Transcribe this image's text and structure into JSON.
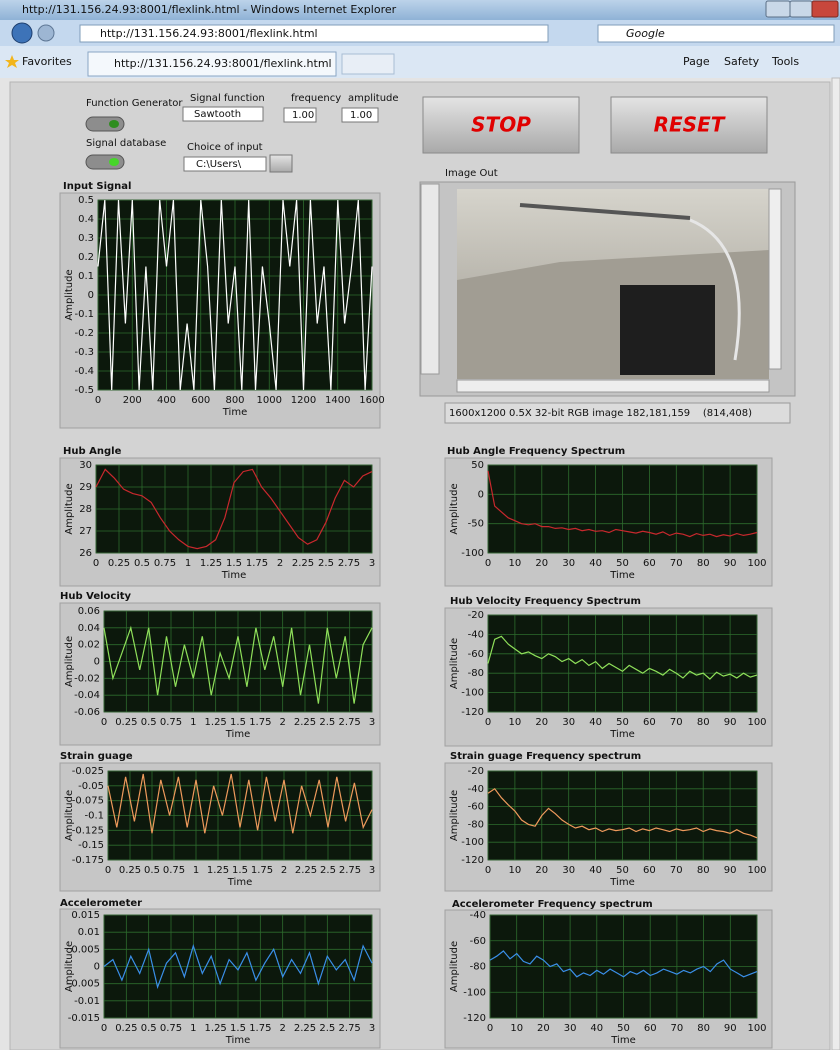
{
  "browser": {
    "window_title": "http://131.156.24.93:8001/flexlink.html - Windows Internet Explorer",
    "address": "http://131.156.24.93:8001/flexlink.html",
    "search": "Google",
    "favorites": "Favorites",
    "tab": "http://131.156.24.93:8001/flexlink.html",
    "menu": [
      "Page",
      "Safety",
      "Tools"
    ]
  },
  "controls": {
    "function_generator": "Function Generator",
    "signal_database": "Signal database",
    "signal_function_label": "Signal function",
    "signal_function": "Sawtooth",
    "frequency_label": "frequency",
    "frequency": "1.00",
    "amplitude_label": "amplitude",
    "amplitude": "1.00",
    "choice_label": "Choice of input",
    "choice": "C:\\Users\\",
    "stop": "STOP",
    "reset": "RESET"
  },
  "image": {
    "title": "Image Out",
    "status": "1600x1200 0.5X 32-bit RGB image 182,181,159    (814,408)"
  },
  "chart_data": [
    {
      "type": "line",
      "title": "Input Signal",
      "x_label": "Time",
      "y_label": "Amplitude",
      "xlim": [
        0,
        1600
      ],
      "xticks": [
        0,
        200,
        400,
        600,
        800,
        1000,
        1200,
        1400,
        1600
      ],
      "ylim": [
        -0.5,
        0.5
      ],
      "yticks": [
        -0.5,
        -0.4,
        -0.3,
        -0.2,
        -0.1,
        0,
        0.1,
        0.2,
        0.3,
        0.4,
        0.5
      ],
      "grid": true,
      "x": [
        0,
        40,
        80,
        120,
        160,
        200,
        240,
        280,
        320,
        360,
        400,
        440,
        480,
        520,
        560,
        600,
        640,
        680,
        720,
        760,
        800,
        840,
        880,
        920,
        960,
        1000,
        1040,
        1080,
        1120,
        1160,
        1200,
        1240,
        1280,
        1320,
        1360,
        1400,
        1440,
        1480,
        1520,
        1560,
        1600
      ],
      "series": [
        {
          "color": "#ffffff",
          "values": [
            0.15,
            0.5,
            -0.5,
            0.5,
            -0.15,
            0.5,
            -0.5,
            0.15,
            -0.5,
            0.5,
            0.15,
            0.5,
            -0.5,
            -0.15,
            -0.5,
            0.5,
            0.15,
            -0.5,
            0.5,
            -0.15,
            0.15,
            -0.5,
            0.5,
            -0.5,
            0.15,
            -0.15,
            -0.5,
            0.5,
            0.15,
            0.5,
            -0.5,
            0.5,
            -0.15,
            0.15,
            -0.5,
            0.5,
            -0.15,
            0.15,
            0.5,
            -0.5,
            0.15
          ]
        }
      ]
    },
    {
      "type": "line",
      "title": "Hub Angle",
      "x_label": "Time",
      "y_label": "Amplitude",
      "xlim": [
        0,
        3
      ],
      "xticks": [
        0,
        0.25,
        0.5,
        0.75,
        1,
        1.25,
        1.5,
        1.75,
        2,
        2.25,
        2.5,
        2.75,
        3
      ],
      "ylim": [
        26,
        30
      ],
      "yticks": [
        26,
        27,
        28,
        29,
        30
      ],
      "grid": true,
      "x": [
        0,
        0.1,
        0.2,
        0.3,
        0.4,
        0.5,
        0.6,
        0.7,
        0.8,
        0.9,
        1,
        1.1,
        1.2,
        1.3,
        1.4,
        1.5,
        1.6,
        1.7,
        1.8,
        1.9,
        2,
        2.1,
        2.2,
        2.3,
        2.4,
        2.5,
        2.6,
        2.7,
        2.8,
        2.9,
        3
      ],
      "series": [
        {
          "color": "#c8282d",
          "values": [
            29.0,
            29.8,
            29.4,
            28.9,
            28.7,
            28.6,
            28.3,
            27.6,
            27.0,
            26.6,
            26.3,
            26.2,
            26.3,
            26.6,
            27.6,
            29.2,
            29.7,
            29.8,
            29.0,
            28.5,
            27.9,
            27.3,
            26.7,
            26.4,
            26.6,
            27.4,
            28.5,
            29.3,
            29.0,
            29.5,
            29.7
          ]
        }
      ]
    },
    {
      "type": "line",
      "title": "Hub Angle Frequency Spectrum",
      "x_label": "Time",
      "y_label": "Amplitude",
      "xlim": [
        0,
        100
      ],
      "xticks": [
        0,
        10,
        20,
        30,
        40,
        50,
        60,
        70,
        80,
        90,
        100
      ],
      "ylim": [
        -100,
        50
      ],
      "yticks": [
        -100,
        -50,
        0,
        50
      ],
      "grid": true,
      "x": [
        0,
        2.5,
        5,
        7.5,
        10,
        12.5,
        15,
        17.5,
        20,
        22.5,
        25,
        27.5,
        30,
        32.5,
        35,
        37.5,
        40,
        42.5,
        45,
        47.5,
        50,
        52.5,
        55,
        57.5,
        60,
        62.5,
        65,
        67.5,
        70,
        72.5,
        75,
        77.5,
        80,
        82.5,
        85,
        87.5,
        90,
        92.5,
        95,
        97.5,
        100
      ],
      "series": [
        {
          "color": "#c8282d",
          "values": [
            40,
            -20,
            -30,
            -40,
            -45,
            -50,
            -52,
            -50,
            -55,
            -55,
            -58,
            -57,
            -60,
            -58,
            -62,
            -60,
            -63,
            -62,
            -65,
            -60,
            -62,
            -64,
            -66,
            -63,
            -65,
            -68,
            -64,
            -70,
            -66,
            -68,
            -72,
            -67,
            -70,
            -68,
            -72,
            -69,
            -71,
            -67,
            -70,
            -68,
            -65
          ]
        }
      ]
    },
    {
      "type": "line",
      "title": "Hub Velocity",
      "x_label": "Time",
      "y_label": "Amplitude",
      "xlim": [
        0,
        3
      ],
      "xticks": [
        0,
        0.25,
        0.5,
        0.75,
        1,
        1.25,
        1.5,
        1.75,
        2,
        2.25,
        2.5,
        2.75,
        3
      ],
      "ylim": [
        -0.06,
        0.06
      ],
      "yticks": [
        -0.06,
        -0.04,
        -0.02,
        0,
        0.02,
        0.04,
        0.06
      ],
      "grid": true,
      "x": [
        0,
        0.1,
        0.2,
        0.3,
        0.4,
        0.5,
        0.6,
        0.7,
        0.8,
        0.9,
        1,
        1.1,
        1.2,
        1.3,
        1.4,
        1.5,
        1.6,
        1.7,
        1.8,
        1.9,
        2,
        2.1,
        2.2,
        2.3,
        2.4,
        2.5,
        2.6,
        2.7,
        2.8,
        2.9,
        3
      ],
      "series": [
        {
          "color": "#8fe05a",
          "values": [
            0.04,
            -0.02,
            0.01,
            0.04,
            -0.01,
            0.04,
            -0.04,
            0.03,
            -0.03,
            0.02,
            -0.02,
            0.03,
            -0.04,
            0.01,
            -0.02,
            0.03,
            -0.03,
            0.04,
            -0.01,
            0.03,
            -0.03,
            0.04,
            -0.04,
            0.02,
            -0.05,
            0.04,
            -0.02,
            0.03,
            -0.05,
            0.02,
            0.04
          ]
        }
      ]
    },
    {
      "type": "line",
      "title": "Hub Velocity Frequency Spectrum",
      "x_label": "Time",
      "y_label": "Amplitude",
      "xlim": [
        0,
        100
      ],
      "xticks": [
        0,
        10,
        20,
        30,
        40,
        50,
        60,
        70,
        80,
        90,
        100
      ],
      "ylim": [
        -120,
        -20
      ],
      "yticks": [
        -120,
        -100,
        -80,
        -60,
        -40,
        -20
      ],
      "grid": true,
      "x": [
        0,
        2.5,
        5,
        7.5,
        10,
        12.5,
        15,
        17.5,
        20,
        22.5,
        25,
        27.5,
        30,
        32.5,
        35,
        37.5,
        40,
        42.5,
        45,
        47.5,
        50,
        52.5,
        55,
        57.5,
        60,
        62.5,
        65,
        67.5,
        70,
        72.5,
        75,
        77.5,
        80,
        82.5,
        85,
        87.5,
        90,
        92.5,
        95,
        97.5,
        100
      ],
      "series": [
        {
          "color": "#8fe05a",
          "values": [
            -70,
            -45,
            -42,
            -50,
            -55,
            -60,
            -58,
            -62,
            -65,
            -60,
            -63,
            -68,
            -65,
            -70,
            -66,
            -72,
            -68,
            -75,
            -70,
            -74,
            -78,
            -72,
            -76,
            -80,
            -75,
            -78,
            -82,
            -76,
            -80,
            -85,
            -78,
            -82,
            -80,
            -86,
            -79,
            -83,
            -81,
            -85,
            -80,
            -84,
            -82
          ]
        }
      ]
    },
    {
      "type": "line",
      "title": "Strain guage",
      "x_label": "Time",
      "y_label": "Amplitude",
      "xlim": [
        0,
        3
      ],
      "xticks": [
        0,
        0.25,
        0.5,
        0.75,
        1,
        1.25,
        1.5,
        1.75,
        2,
        2.25,
        2.5,
        2.75,
        3
      ],
      "ylim": [
        -0.175,
        -0.025
      ],
      "yticks": [
        -0.175,
        -0.15,
        -0.125,
        -0.1,
        -0.075,
        -0.05,
        -0.025
      ],
      "grid": true,
      "x": [
        0,
        0.1,
        0.2,
        0.3,
        0.4,
        0.5,
        0.6,
        0.7,
        0.8,
        0.9,
        1,
        1.1,
        1.2,
        1.3,
        1.4,
        1.5,
        1.6,
        1.7,
        1.8,
        1.9,
        2,
        2.1,
        2.2,
        2.3,
        2.4,
        2.5,
        2.6,
        2.7,
        2.8,
        2.9,
        3
      ],
      "series": [
        {
          "color": "#ee9a5c",
          "values": [
            -0.05,
            -0.12,
            -0.035,
            -0.11,
            -0.03,
            -0.13,
            -0.04,
            -0.1,
            -0.035,
            -0.12,
            -0.04,
            -0.13,
            -0.05,
            -0.1,
            -0.03,
            -0.12,
            -0.04,
            -0.125,
            -0.035,
            -0.11,
            -0.04,
            -0.13,
            -0.05,
            -0.1,
            -0.04,
            -0.12,
            -0.035,
            -0.11,
            -0.045,
            -0.12,
            -0.09
          ]
        }
      ]
    },
    {
      "type": "line",
      "title": "Strain guage Frequency spectrum",
      "x_label": "Time",
      "y_label": "Amplitude",
      "xlim": [
        0,
        100
      ],
      "xticks": [
        0,
        10,
        20,
        30,
        40,
        50,
        60,
        70,
        80,
        90,
        100
      ],
      "ylim": [
        -120,
        -20
      ],
      "yticks": [
        -120,
        -100,
        -80,
        -60,
        -40,
        -20
      ],
      "grid": true,
      "x": [
        0,
        2.5,
        5,
        7.5,
        10,
        12.5,
        15,
        17.5,
        20,
        22.5,
        25,
        27.5,
        30,
        32.5,
        35,
        37.5,
        40,
        42.5,
        45,
        47.5,
        50,
        52.5,
        55,
        57.5,
        60,
        62.5,
        65,
        67.5,
        70,
        72.5,
        75,
        77.5,
        80,
        82.5,
        85,
        87.5,
        90,
        92.5,
        95,
        97.5,
        100
      ],
      "series": [
        {
          "color": "#ee9a5c",
          "values": [
            -45,
            -40,
            -50,
            -58,
            -65,
            -75,
            -80,
            -82,
            -70,
            -62,
            -68,
            -75,
            -80,
            -84,
            -82,
            -86,
            -84,
            -88,
            -85,
            -87,
            -86,
            -84,
            -88,
            -85,
            -87,
            -84,
            -86,
            -88,
            -85,
            -87,
            -86,
            -84,
            -88,
            -85,
            -87,
            -88,
            -90,
            -86,
            -90,
            -92,
            -95
          ]
        }
      ]
    },
    {
      "type": "line",
      "title": "Accelerometer",
      "x_label": "Time",
      "y_label": "Amplitude",
      "xlim": [
        0,
        3
      ],
      "xticks": [
        0,
        0.25,
        0.5,
        0.75,
        1,
        1.25,
        1.5,
        1.75,
        2,
        2.25,
        2.5,
        2.75,
        3
      ],
      "ylim": [
        -0.015,
        0.015
      ],
      "yticks": [
        -0.015,
        -0.01,
        -0.005,
        0,
        0.005,
        0.01,
        0.015
      ],
      "grid": true,
      "x": [
        0,
        0.1,
        0.2,
        0.3,
        0.4,
        0.5,
        0.6,
        0.7,
        0.8,
        0.9,
        1,
        1.1,
        1.2,
        1.3,
        1.4,
        1.5,
        1.6,
        1.7,
        1.8,
        1.9,
        2,
        2.1,
        2.2,
        2.3,
        2.4,
        2.5,
        2.6,
        2.7,
        2.8,
        2.9,
        3
      ],
      "series": [
        {
          "color": "#3a8fe8",
          "values": [
            0,
            0.002,
            -0.004,
            0.003,
            -0.002,
            0.005,
            -0.006,
            0.001,
            0.004,
            -0.003,
            0.006,
            -0.002,
            0.003,
            -0.005,
            0.002,
            -0.001,
            0.004,
            -0.004,
            0.001,
            0.005,
            -0.003,
            0.002,
            -0.002,
            0.004,
            -0.005,
            0.003,
            -0.001,
            0.002,
            -0.004,
            0.006,
            0.001
          ]
        }
      ]
    },
    {
      "type": "line",
      "title": "Accelerometer Frequency spectrum",
      "x_label": "Time",
      "y_label": "Amplitude",
      "xlim": [
        0,
        100
      ],
      "xticks": [
        0,
        10,
        20,
        30,
        40,
        50,
        60,
        70,
        80,
        90,
        100
      ],
      "ylim": [
        -120,
        -40
      ],
      "yticks": [
        -120,
        -100,
        -80,
        -60,
        -40
      ],
      "grid": true,
      "x": [
        0,
        2.5,
        5,
        7.5,
        10,
        12.5,
        15,
        17.5,
        20,
        22.5,
        25,
        27.5,
        30,
        32.5,
        35,
        37.5,
        40,
        42.5,
        45,
        47.5,
        50,
        52.5,
        55,
        57.5,
        60,
        62.5,
        65,
        67.5,
        70,
        72.5,
        75,
        77.5,
        80,
        82.5,
        85,
        87.5,
        90,
        92.5,
        95,
        97.5,
        100
      ],
      "series": [
        {
          "color": "#3a8fe8",
          "values": [
            -75,
            -72,
            -68,
            -74,
            -70,
            -76,
            -78,
            -72,
            -75,
            -80,
            -78,
            -84,
            -82,
            -88,
            -85,
            -87,
            -83,
            -86,
            -82,
            -85,
            -88,
            -84,
            -86,
            -83,
            -87,
            -85,
            -82,
            -84,
            -86,
            -83,
            -85,
            -82,
            -80,
            -84,
            -78,
            -75,
            -82,
            -85,
            -88,
            -86,
            -84
          ]
        }
      ]
    }
  ]
}
